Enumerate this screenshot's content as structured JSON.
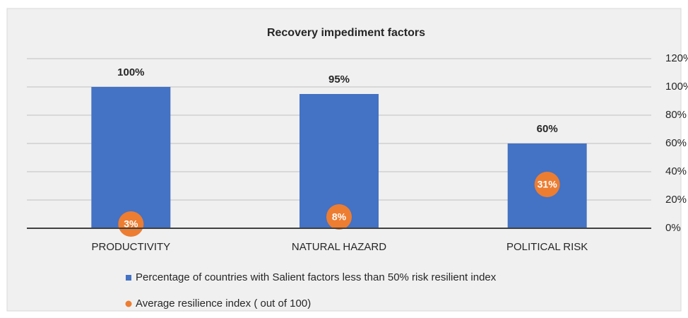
{
  "chart_data": {
    "type": "bar",
    "title": "Recovery impediment factors",
    "categories": [
      "PRODUCTIVITY",
      "NATURAL HAZARD",
      "POLITICAL RISK"
    ],
    "series": [
      {
        "name": "Percentage of countries with Salient  factors less than 50% risk resilient index",
        "color": "#4472c4",
        "mark": "bar",
        "values": [
          100,
          95,
          60
        ],
        "value_labels": [
          "100%",
          "95%",
          "60%"
        ]
      },
      {
        "name": "Average resilience index ( out of 100)",
        "color": "#ed7d31",
        "mark": "circle",
        "values": [
          3,
          8,
          31
        ],
        "value_labels": [
          "3%",
          "8%",
          "31%"
        ]
      }
    ],
    "ylim": [
      0,
      120
    ],
    "yticks": [
      {
        "value": 0,
        "label": "0%"
      },
      {
        "value": 20,
        "label": "20%"
      },
      {
        "value": 40,
        "label": "40%"
      },
      {
        "value": 60,
        "label": "60%"
      },
      {
        "value": 80,
        "label": "80%"
      },
      {
        "value": 100,
        "label": "100%"
      },
      {
        "value": 120,
        "label": "120%"
      }
    ],
    "grid": true,
    "legend": "bottom"
  }
}
